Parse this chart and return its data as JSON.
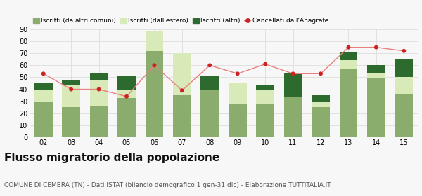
{
  "years": [
    "02",
    "03",
    "04",
    "05",
    "06",
    "07",
    "08",
    "09",
    "10",
    "11",
    "12",
    "13",
    "14",
    "15"
  ],
  "iscritti_altri_comuni": [
    30,
    25,
    26,
    33,
    72,
    35,
    39,
    28,
    28,
    34,
    25,
    57,
    49,
    36
  ],
  "iscritti_estero": [
    10,
    18,
    22,
    7,
    17,
    35,
    0,
    17,
    11,
    0,
    5,
    7,
    5,
    14
  ],
  "iscritti_altri": [
    5,
    5,
    5,
    11,
    0,
    0,
    12,
    0,
    5,
    20,
    5,
    7,
    6,
    15
  ],
  "cancellati": [
    53,
    40,
    40,
    34,
    60,
    39,
    60,
    53,
    61,
    53,
    53,
    75,
    75,
    72
  ],
  "color_altri_comuni": "#8aad6e",
  "color_estero": "#d8eab8",
  "color_altri": "#2d6a2d",
  "color_cancellati": "#cc2222",
  "color_line": "#e88080",
  "background_color": "#f7f7f7",
  "grid_color": "#dddddd",
  "ylim": [
    0,
    90
  ],
  "yticks": [
    0,
    10,
    20,
    30,
    40,
    50,
    60,
    70,
    80,
    90
  ],
  "legend_labels": [
    "Iscritti (da altri comuni)",
    "Iscritti (dall'estero)",
    "Iscritti (altri)",
    "Cancellati dall'Anagrafe"
  ],
  "title": "Flusso migratorio della popolazione",
  "subtitle": "COMUNE DI CEMBRA (TN) - Dati ISTAT (bilancio demografico 1 gen-31 dic) - Elaborazione TUTTITALIA.IT",
  "title_fontsize": 11,
  "subtitle_fontsize": 6.5
}
